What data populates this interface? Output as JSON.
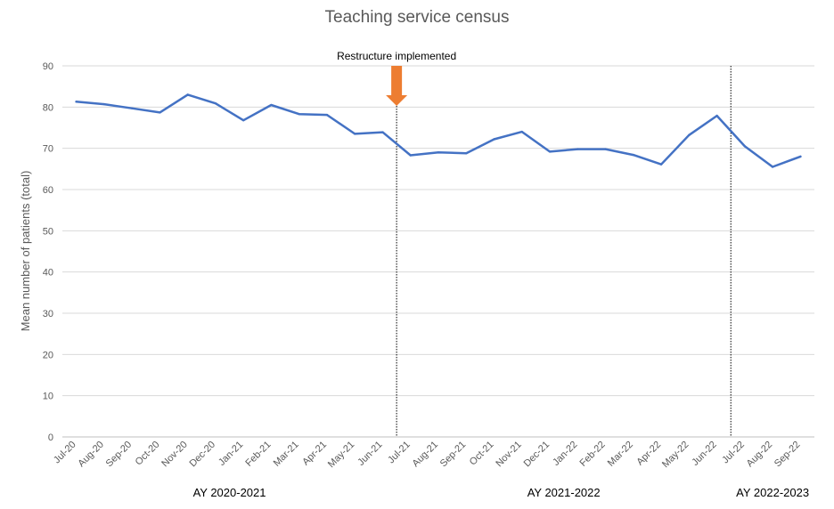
{
  "chart_data": {
    "type": "line",
    "title": "Teaching service census",
    "ylabel": "Mean number of patients (total)",
    "xlabel": "",
    "ylim": [
      0,
      90
    ],
    "yticks": [
      0,
      10,
      20,
      30,
      40,
      50,
      60,
      70,
      80,
      90
    ],
    "grid": true,
    "categories": [
      "Jul-20",
      "Aug-20",
      "Sep-20",
      "Oct-20",
      "Nov-20",
      "Dec-20",
      "Jan-21",
      "Feb-21",
      "Mar-21",
      "Apr-21",
      "May-21",
      "Jun-21",
      "Jul-21",
      "Aug-21",
      "Sep-21",
      "Oct-21",
      "Nov-21",
      "Dec-21",
      "Jan-22",
      "Feb-22",
      "Mar-22",
      "Apr-22",
      "May-22",
      "Jun-22",
      "Jul-22",
      "Aug-22",
      "Sep-22"
    ],
    "series": [
      {
        "values": [
          81.3,
          80.7,
          79.7,
          78.7,
          83.0,
          80.9,
          76.8,
          80.5,
          78.3,
          78.1,
          73.5,
          73.9,
          68.3,
          69.0,
          68.8,
          72.2,
          74.0,
          69.2,
          69.8,
          69.8,
          68.4,
          66.1,
          73.2,
          77.9,
          70.5,
          65.5,
          68.0
        ]
      }
    ],
    "colors": {
      "line": "#4472C4",
      "arrow": "#ED7D31",
      "grid": "#D9D9D9",
      "axis": "#BFBFBF"
    },
    "annotations": [
      {
        "text": "Restructure implemented",
        "x_between": [
          "Jun-21",
          "Jul-21"
        ],
        "marker": "arrow-down"
      }
    ],
    "vertical_lines": [
      {
        "x_between": [
          "Jun-21",
          "Jul-21"
        ],
        "style": "dotted"
      },
      {
        "x_between": [
          "Jun-22",
          "Jul-22"
        ],
        "style": "dotted"
      }
    ],
    "periods": [
      {
        "label": "AY 2020-2021",
        "from": "Jul-20",
        "to": "Jun-21"
      },
      {
        "label": "AY 2021-2022",
        "from": "Jul-21",
        "to": "Jun-22"
      },
      {
        "label": "AY 2022-2023",
        "from": "Jul-22",
        "to": "Sep-22"
      }
    ]
  }
}
